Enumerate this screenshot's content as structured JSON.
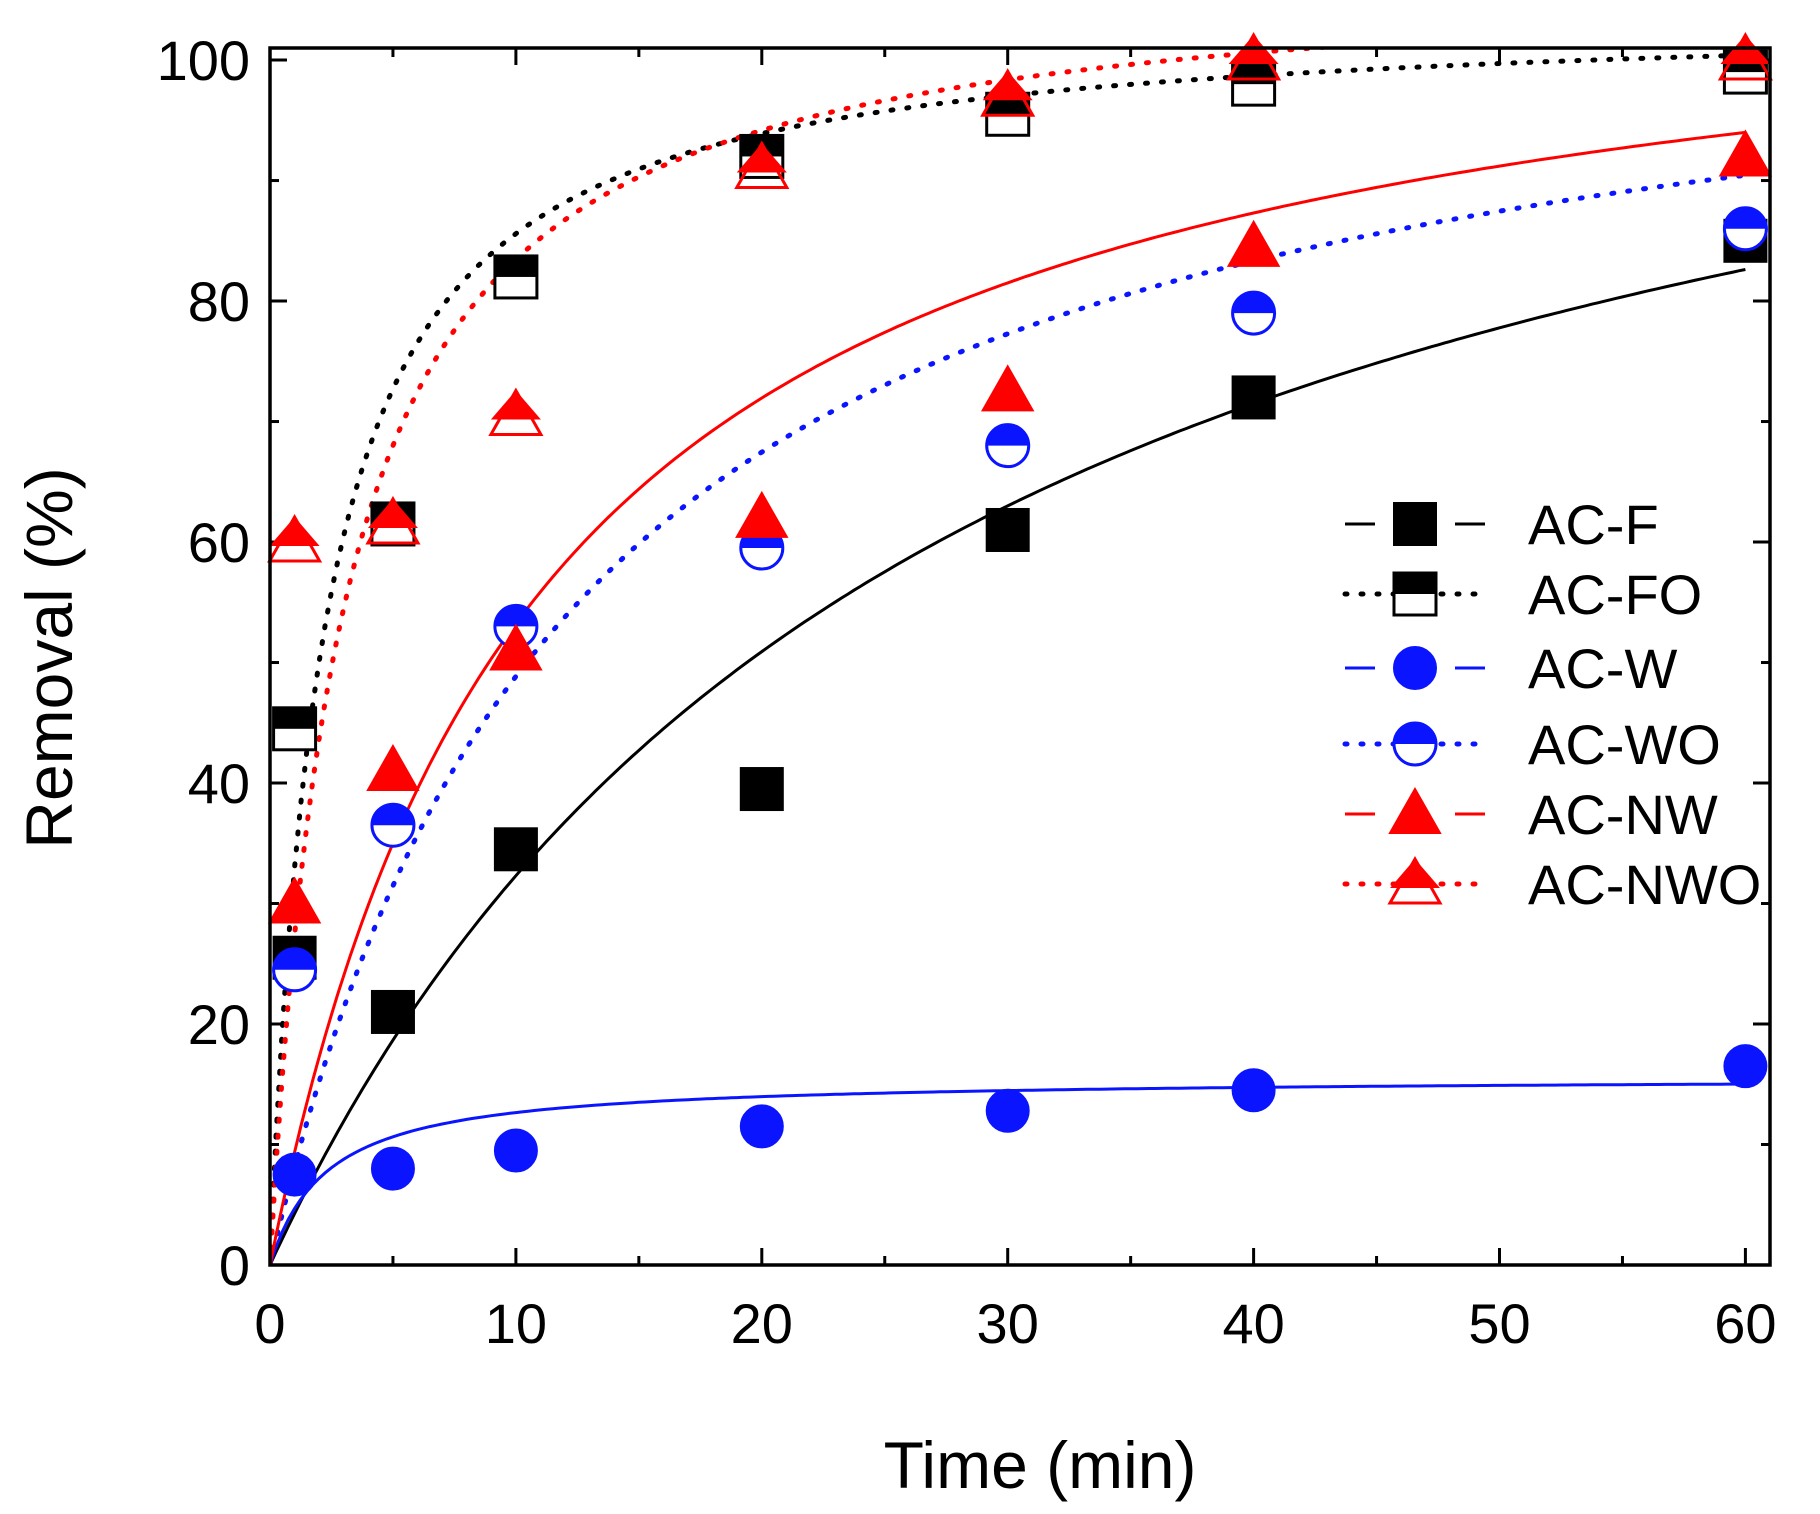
{
  "chart_data": {
    "type": "scatter",
    "title": "",
    "xlabel": "Time (min)",
    "ylabel": "Removal (%)",
    "xlim": [
      0,
      61
    ],
    "ylim": [
      0,
      101
    ],
    "xticks": [
      0,
      10,
      20,
      30,
      40,
      50,
      60
    ],
    "yticks": [
      0,
      20,
      40,
      60,
      80,
      100
    ],
    "x_minor_step": 5,
    "y_minor_step": 10,
    "legend_position": "center-right",
    "series": [
      {
        "name": "AC-F",
        "color": "#000000",
        "marker": "square",
        "fill": "full",
        "line": "solid",
        "x": [
          1,
          5,
          10,
          20,
          30,
          40,
          60
        ],
        "y": [
          25.5,
          21,
          34.5,
          39.5,
          61,
          72,
          85
        ],
        "fit": {
          "model": "pso",
          "qe": 120,
          "k": 0.000307
        }
      },
      {
        "name": "AC-FO",
        "color": "#000000",
        "marker": "square",
        "fill": "half",
        "line": "dotted",
        "x": [
          1,
          5,
          10,
          20,
          30,
          40,
          60
        ],
        "y": [
          44.5,
          61.5,
          82,
          92,
          95.5,
          98,
          99
        ],
        "fit": {
          "model": "pso",
          "qe": 104,
          "k": 0.00447
        }
      },
      {
        "name": "AC-W",
        "color": "#0a14ff",
        "marker": "circle",
        "fill": "full",
        "line": "solid",
        "x": [
          1,
          5,
          10,
          20,
          30,
          40,
          60
        ],
        "y": [
          7.5,
          8,
          9.5,
          11.5,
          12.8,
          14.5,
          16.5
        ],
        "fit": {
          "model": "pso",
          "qe": 15.6,
          "k": 0.0275
        }
      },
      {
        "name": "AC-WO",
        "color": "#0a14ff",
        "marker": "circle",
        "fill": "half",
        "line": "dotted",
        "x": [
          1,
          5,
          10,
          20,
          30,
          40,
          60
        ],
        "y": [
          24.5,
          36.5,
          53,
          59.5,
          68,
          79,
          86
        ],
        "fit": {
          "model": "pso",
          "qe": 109,
          "k": 0.000745
        }
      },
      {
        "name": "AC-NW",
        "color": "#ff0000",
        "marker": "triangle",
        "fill": "full",
        "line": "solid",
        "x": [
          1,
          5,
          10,
          20,
          30,
          40,
          60
        ],
        "y": [
          30,
          41,
          51,
          62,
          72.5,
          84.5,
          92
        ],
        "fit": {
          "model": "pso",
          "qe": 111,
          "k": 0.00083
        }
      },
      {
        "name": "AC-NWO",
        "color": "#ff0000",
        "marker": "triangle",
        "fill": "half",
        "line": "dotted",
        "x": [
          1,
          5,
          10,
          20,
          30,
          40,
          60
        ],
        "y": [
          60,
          61.5,
          70.5,
          91,
          97,
          100,
          100
        ],
        "fit": {
          "model": "pso",
          "qe": 108,
          "k": 0.00315
        }
      }
    ]
  }
}
